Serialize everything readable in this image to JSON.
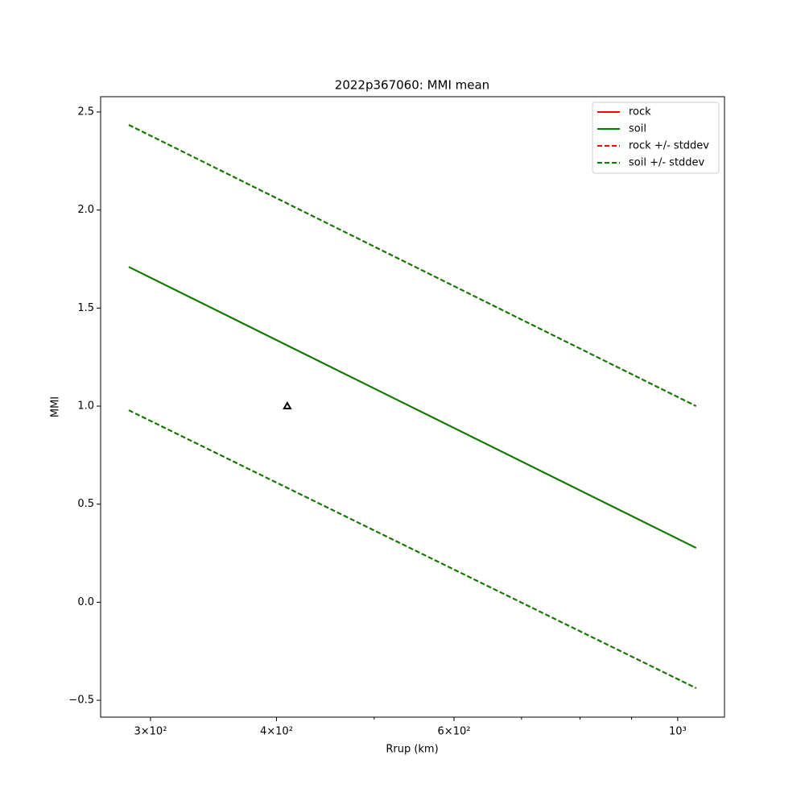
{
  "chart_data": {
    "type": "line",
    "title": "2022p367060: MMI mean",
    "xlabel": "Rrup (km)",
    "ylabel": "MMI",
    "xscale": "log",
    "xlim": [
      267.7,
      1112.8
    ],
    "ylim": [
      -0.586,
      2.578
    ],
    "xticks": [
      {
        "value": 300,
        "label": "3×10²"
      },
      {
        "value": 400,
        "label": "4×10²"
      },
      {
        "value": 600,
        "label": "6×10²"
      },
      {
        "value": 1000,
        "label": "10³"
      }
    ],
    "xminorticks": [
      500,
      700,
      800,
      900
    ],
    "yticks": [
      {
        "value": -0.5,
        "label": "−0.5"
      },
      {
        "value": 0,
        "label": "0.0"
      },
      0.5,
      {
        "value": 1,
        "label": "1.0"
      },
      1.5,
      {
        "value": 2,
        "label": "2.0"
      },
      2.5
    ],
    "x": [
      285.5,
      1043
    ],
    "series": [
      {
        "name": "rock",
        "color": "#ff0000",
        "dash": false,
        "values": [
          1.71,
          0.277
        ]
      },
      {
        "name": "soil",
        "color": "#008000",
        "dash": false,
        "values": [
          1.71,
          0.277
        ]
      },
      {
        "name": "rock +/- stddev",
        "color": "#ff0000",
        "dash": true,
        "upper": [
          2.434,
          1.0
        ],
        "lower": [
          0.979,
          -0.438
        ]
      },
      {
        "name": "soil +/- stddev",
        "color": "#008000",
        "dash": true,
        "upper": [
          2.434,
          1.0
        ],
        "lower": [
          0.979,
          -0.438
        ]
      }
    ],
    "points": {
      "x": [
        410
      ],
      "y": [
        1.0
      ],
      "color": "#000000"
    },
    "legend": "upper right"
  }
}
